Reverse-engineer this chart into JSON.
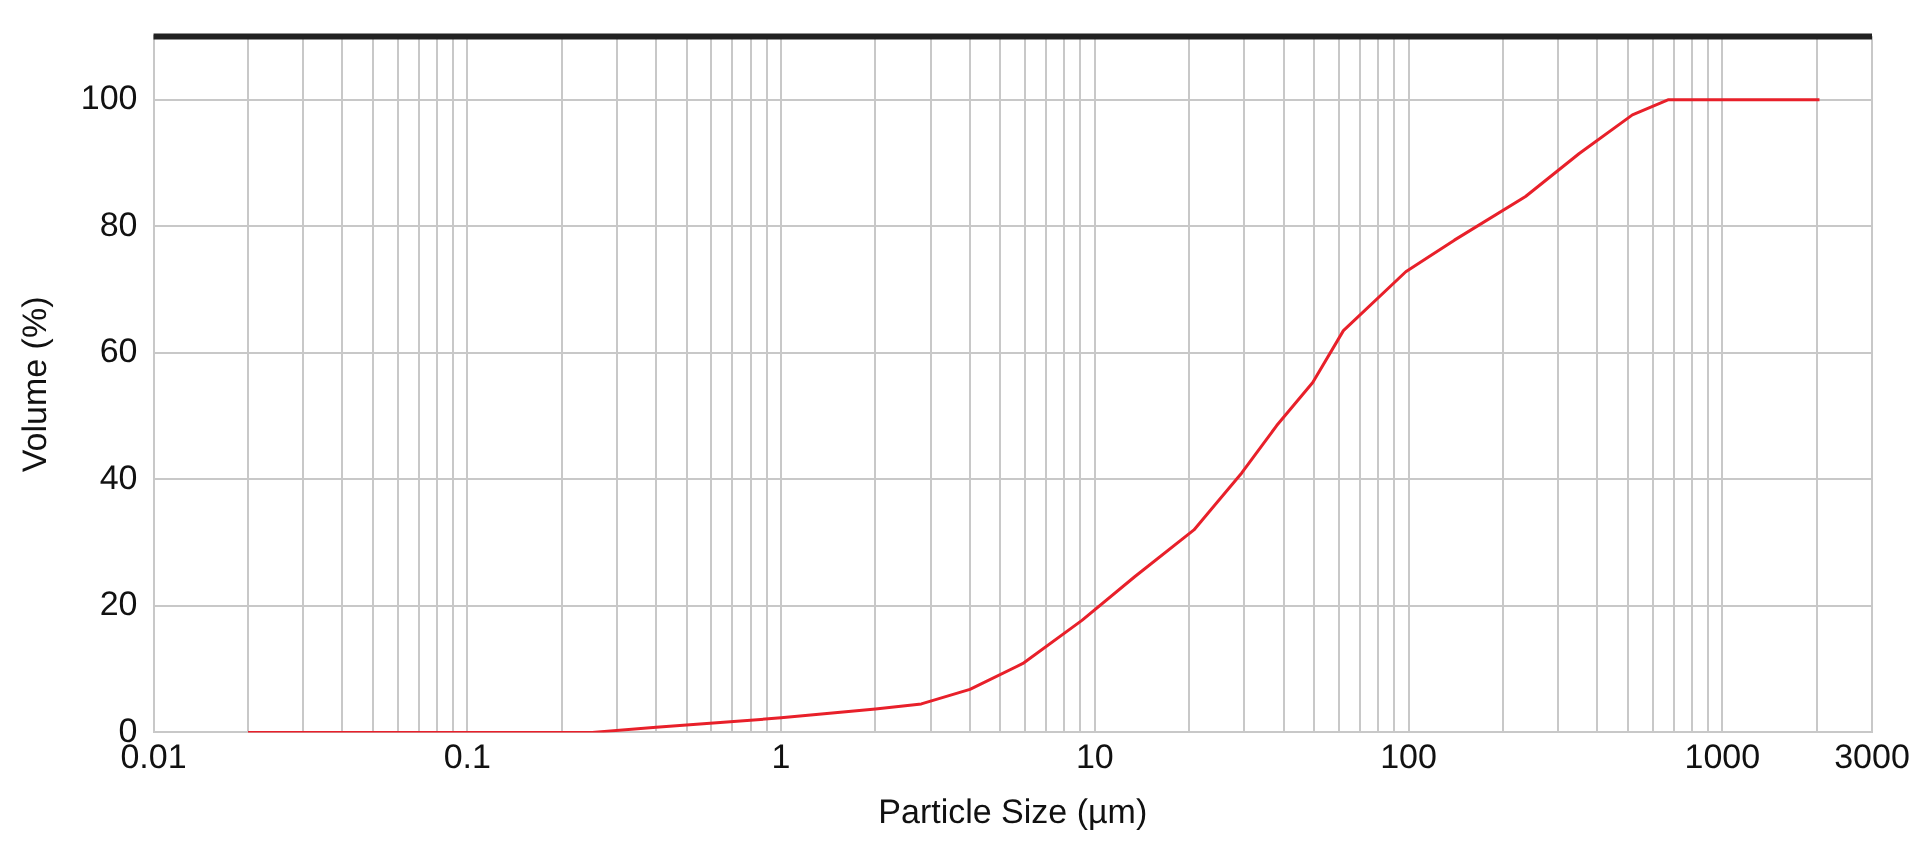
{
  "chart_data": {
    "type": "line",
    "xlabel": "Particle Size (µm)",
    "ylabel": "Volume (%)",
    "x": [
      0.02,
      0.1,
      0.25,
      0.4,
      1,
      2,
      2.8,
      4,
      5.9,
      9.1,
      13.4,
      20.7,
      29.4,
      38,
      49.5,
      62,
      98,
      140,
      236,
      350,
      517,
      674,
      2040
    ],
    "series": [
      {
        "color": "#e8202a",
        "values": [
          0,
          0,
          0,
          0.8,
          2.3,
          3.7,
          4.5,
          6.8,
          10.9,
          17.7,
          24.6,
          32,
          41,
          48.5,
          55.3,
          63.5,
          72.8,
          77.8,
          84.7,
          91.5,
          97.6,
          100,
          100
        ]
      }
    ],
    "log": "x",
    "grid": true,
    "legend": false,
    "marker": "none",
    "line_style": "solid",
    "xlim": [
      0.01,
      3000
    ],
    "ylim": [
      0,
      110
    ],
    "yticks": [
      0,
      20,
      40,
      60,
      80,
      100
    ],
    "xticks": [
      0.01,
      {
        "value": 0.02,
        "label": null
      },
      {
        "value": 0.03,
        "label": null
      },
      {
        "value": 0.04,
        "label": null
      },
      {
        "value": 0.05,
        "label": null
      },
      {
        "value": 0.06,
        "label": null
      },
      {
        "value": 0.07,
        "label": null
      },
      {
        "value": 0.08,
        "label": null
      },
      {
        "value": 0.09,
        "label": null
      },
      0.1,
      {
        "value": 0.2,
        "label": null
      },
      {
        "value": 0.3,
        "label": null
      },
      {
        "value": 0.4,
        "label": null
      },
      {
        "value": 0.5,
        "label": null
      },
      {
        "value": 0.6,
        "label": null
      },
      {
        "value": 0.7,
        "label": null
      },
      {
        "value": 0.8,
        "label": null
      },
      {
        "value": 0.9,
        "label": null
      },
      1,
      {
        "value": 2,
        "label": null
      },
      {
        "value": 3,
        "label": null
      },
      {
        "value": 4,
        "label": null
      },
      {
        "value": 5,
        "label": null
      },
      {
        "value": 6,
        "label": null
      },
      {
        "value": 7,
        "label": null
      },
      {
        "value": 8,
        "label": null
      },
      {
        "value": 9,
        "label": null
      },
      10,
      {
        "value": 20,
        "label": null
      },
      {
        "value": 30,
        "label": null
      },
      {
        "value": 40,
        "label": null
      },
      {
        "value": 50,
        "label": null
      },
      {
        "value": 60,
        "label": null
      },
      {
        "value": 70,
        "label": null
      },
      {
        "value": 80,
        "label": null
      },
      {
        "value": 90,
        "label": null
      },
      100,
      {
        "value": 200,
        "label": null
      },
      {
        "value": 300,
        "label": null
      },
      {
        "value": 400,
        "label": null
      },
      {
        "value": 500,
        "label": null
      },
      {
        "value": 600,
        "label": null
      },
      {
        "value": 700,
        "label": null
      },
      {
        "value": 800,
        "label": null
      },
      {
        "value": 900,
        "label": null
      },
      1000,
      {
        "value": 2000,
        "label": null
      },
      3000
    ]
  }
}
